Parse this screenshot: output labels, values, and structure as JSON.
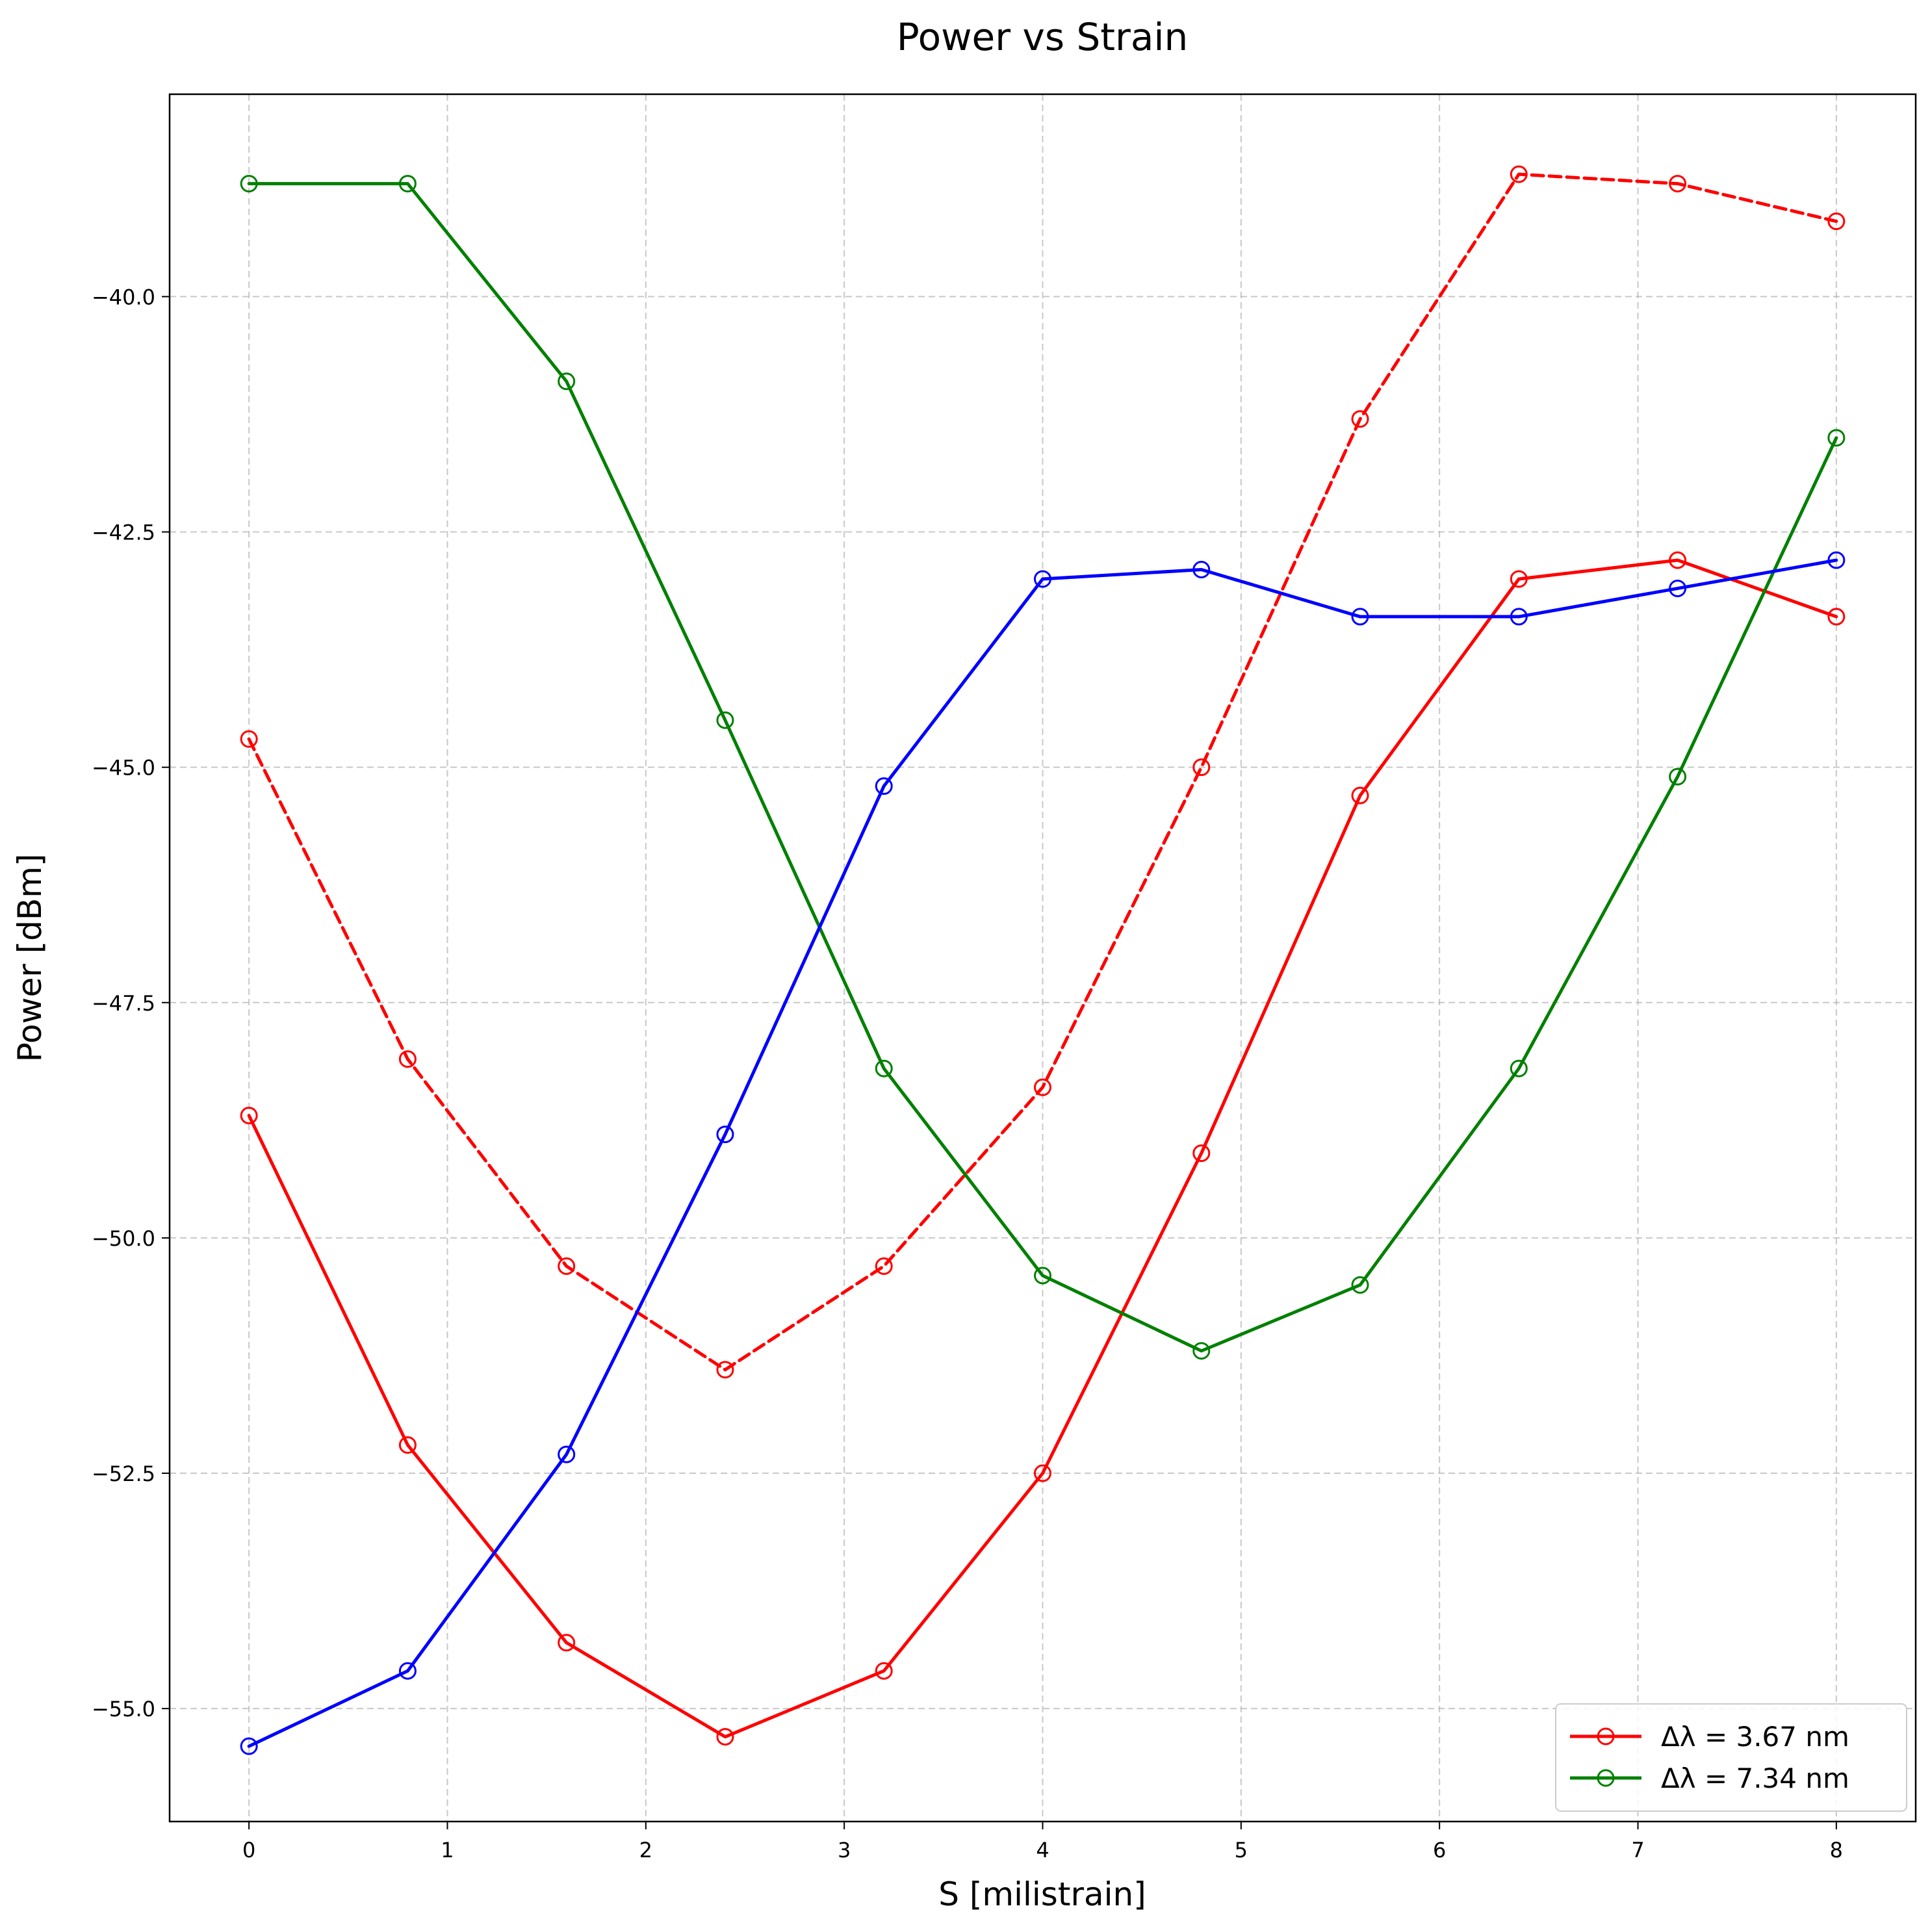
{
  "chart_data": {
    "type": "line",
    "title": "Power vs Strain",
    "xlabel": "S [milistrain]",
    "ylabel": "Power [dBm]",
    "xlim": [
      -0.4,
      8.4
    ],
    "ylim": [
      -56.2,
      -37.85
    ],
    "xticks": [
      0,
      1,
      2,
      3,
      4,
      5,
      6,
      7,
      8
    ],
    "xtick_labels": [
      "0",
      "1",
      "2",
      "3",
      "4",
      "5",
      "6",
      "7",
      "8"
    ],
    "yticks": [
      -40.0,
      -42.5,
      -45.0,
      -47.5,
      -50.0,
      -52.5,
      -55.0
    ],
    "ytick_labels": [
      "−40.0",
      "−42.5",
      "−45.0",
      "−47.5",
      "−50.0",
      "−52.5",
      "−55.0"
    ],
    "grid": true,
    "legend_position": "lower-right",
    "x": [
      0,
      0.8,
      1.6,
      2.4,
      3.2,
      4.0,
      4.8,
      5.6,
      6.4,
      7.2,
      8.0
    ],
    "series": [
      {
        "name": "Δλ = 3.67 nm",
        "color": "#ff0000",
        "linestyle": "solid",
        "in_legend": true,
        "values": [
          -48.7,
          -52.2,
          -54.3,
          -55.3,
          -54.6,
          -52.5,
          -49.1,
          -45.3,
          -43.0,
          -42.8,
          -43.4
        ]
      },
      {
        "linestyle": "dashed",
        "color": "#ff0000",
        "in_legend": false,
        "values": [
          -44.7,
          -48.1,
          -50.3,
          -51.4,
          -50.3,
          -48.4,
          -45.0,
          -41.3,
          -38.7,
          -38.8,
          -39.2
        ]
      },
      {
        "name": "Δλ = 7.34 nm",
        "color": "#008000",
        "linestyle": "solid",
        "in_legend": true,
        "values": [
          -38.8,
          -38.8,
          -40.9,
          -44.5,
          -48.2,
          -50.4,
          -51.2,
          -50.5,
          -48.2,
          -45.1,
          -41.5
        ]
      },
      {
        "linestyle": "solid",
        "color": "#0000ff",
        "in_legend": false,
        "values": [
          -55.4,
          -54.6,
          -52.3,
          -48.9,
          -45.2,
          -43.0,
          -42.9,
          -43.4,
          -43.4,
          -43.1,
          -42.8
        ]
      }
    ]
  }
}
